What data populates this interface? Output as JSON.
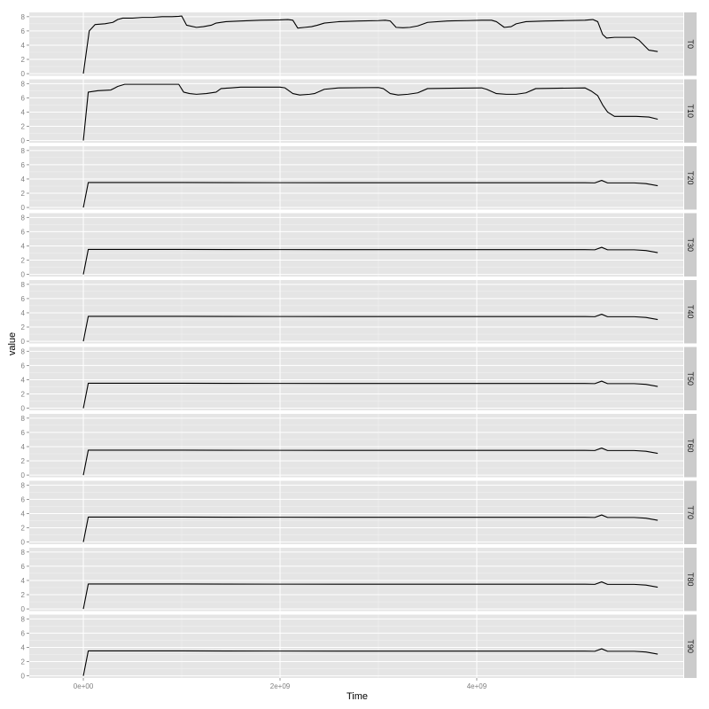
{
  "chart_data": {
    "type": "line",
    "layout": "faceted-vertical",
    "xlabel": "Time",
    "ylabel": "value",
    "xlim": [
      -550000000.0,
      6100000000.0
    ],
    "ylim": [
      -0.3,
      8.6
    ],
    "x_ticks": [
      0,
      2000000000.0,
      4000000000.0
    ],
    "x_tick_labels": [
      "0e+00",
      "2e+09",
      "4e+09"
    ],
    "y_ticks": [
      0,
      2,
      4,
      6,
      8
    ],
    "y_tick_labels": [
      "0",
      "2",
      "4",
      "6",
      "8"
    ],
    "grid": true,
    "line_color": "#000000",
    "panel_background": "#e5e5e5",
    "strip_background": "#cccccc",
    "facets": [
      {
        "label": "T0",
        "x": [
          0,
          60000000.0,
          120000000.0,
          220000000.0,
          300000000.0,
          350000000.0,
          400000000.0,
          500000000.0,
          600000000.0,
          700000000.0,
          800000000.0,
          900000000.0,
          970000000.0,
          1000000000.0,
          1050000000.0,
          1150000000.0,
          1220000000.0,
          1300000000.0,
          1350000000.0,
          1450000000.0,
          1600000000.0,
          1800000000.0,
          2000000000.0,
          2080000000.0,
          2130000000.0,
          2180000000.0,
          2250000000.0,
          2320000000.0,
          2380000000.0,
          2450000000.0,
          2600000000.0,
          2800000000.0,
          3000000000.0,
          3070000000.0,
          3120000000.0,
          3180000000.0,
          3250000000.0,
          3320000000.0,
          3400000000.0,
          3500000000.0,
          3700000000.0,
          3900000000.0,
          4050000000.0,
          4150000000.0,
          4200000000.0,
          4280000000.0,
          4350000000.0,
          4400000000.0,
          4500000000.0,
          4700000000.0,
          4900000000.0,
          5100000000.0,
          5180000000.0,
          5230000000.0,
          5280000000.0,
          5320000000.0,
          5400000000.0,
          5600000000.0,
          5650000000.0,
          5750000000.0,
          5840000000.0
        ],
        "y": [
          0,
          6.0,
          6.9,
          7.0,
          7.2,
          7.6,
          7.8,
          7.8,
          7.9,
          7.9,
          8.0,
          8.0,
          8.05,
          8.1,
          6.8,
          6.5,
          6.6,
          6.8,
          7.1,
          7.3,
          7.4,
          7.5,
          7.55,
          7.6,
          7.5,
          6.4,
          6.5,
          6.6,
          6.8,
          7.1,
          7.3,
          7.4,
          7.45,
          7.5,
          7.4,
          6.5,
          6.45,
          6.5,
          6.7,
          7.2,
          7.4,
          7.45,
          7.5,
          7.5,
          7.3,
          6.5,
          6.6,
          7.0,
          7.3,
          7.4,
          7.45,
          7.5,
          7.6,
          7.3,
          5.5,
          5.0,
          5.1,
          5.1,
          4.7,
          3.3,
          3.1
        ]
      },
      {
        "label": "T10",
        "x": [
          0,
          50000000.0,
          150000000.0,
          280000000.0,
          350000000.0,
          420000000.0,
          600000000.0,
          800000000.0,
          970000000.0,
          1020000000.0,
          1080000000.0,
          1150000000.0,
          1250000000.0,
          1350000000.0,
          1400000000.0,
          1500000000.0,
          1600000000.0,
          2000000000.0,
          2050000000.0,
          2130000000.0,
          2200000000.0,
          2300000000.0,
          2350000000.0,
          2450000000.0,
          2600000000.0,
          3000000000.0,
          3050000000.0,
          3120000000.0,
          3200000000.0,
          3300000000.0,
          3400000000.0,
          3500000000.0,
          4050000000.0,
          4100000000.0,
          4200000000.0,
          4300000000.0,
          4400000000.0,
          4500000000.0,
          4600000000.0,
          5100000000.0,
          5170000000.0,
          5230000000.0,
          5280000000.0,
          5330000000.0,
          5400000000.0,
          5620000000.0,
          5750000000.0,
          5840000000.0
        ],
        "y": [
          0,
          6.8,
          7.0,
          7.1,
          7.6,
          7.9,
          7.9,
          7.9,
          7.9,
          6.8,
          6.6,
          6.5,
          6.6,
          6.8,
          7.3,
          7.4,
          7.5,
          7.5,
          7.4,
          6.6,
          6.4,
          6.5,
          6.6,
          7.2,
          7.4,
          7.45,
          7.3,
          6.6,
          6.4,
          6.5,
          6.7,
          7.3,
          7.4,
          7.2,
          6.6,
          6.5,
          6.5,
          6.7,
          7.3,
          7.4,
          6.9,
          6.3,
          5.0,
          4.0,
          3.4,
          3.4,
          3.3,
          3.0
        ]
      },
      {
        "label": "T20",
        "x": [
          0,
          50000000.0,
          1000000000.0,
          2000000000.0,
          3000000000.0,
          4000000000.0,
          5100000000.0,
          5200000000.0,
          5270000000.0,
          5330000000.0,
          5600000000.0,
          5720000000.0,
          5840000000.0
        ],
        "y": [
          0,
          3.5,
          3.5,
          3.48,
          3.47,
          3.47,
          3.47,
          3.45,
          3.8,
          3.45,
          3.45,
          3.35,
          3.05
        ]
      },
      {
        "label": "T30",
        "x": [
          0,
          50000000.0,
          1000000000.0,
          2000000000.0,
          3000000000.0,
          4000000000.0,
          5100000000.0,
          5200000000.0,
          5270000000.0,
          5330000000.0,
          5600000000.0,
          5720000000.0,
          5840000000.0
        ],
        "y": [
          0,
          3.5,
          3.5,
          3.48,
          3.47,
          3.47,
          3.47,
          3.45,
          3.8,
          3.45,
          3.45,
          3.35,
          3.05
        ]
      },
      {
        "label": "T40",
        "x": [
          0,
          50000000.0,
          1000000000.0,
          2000000000.0,
          3000000000.0,
          4000000000.0,
          5100000000.0,
          5200000000.0,
          5270000000.0,
          5330000000.0,
          5600000000.0,
          5720000000.0,
          5840000000.0
        ],
        "y": [
          0,
          3.5,
          3.5,
          3.48,
          3.47,
          3.47,
          3.47,
          3.45,
          3.8,
          3.45,
          3.45,
          3.35,
          3.05
        ]
      },
      {
        "label": "T50",
        "x": [
          0,
          50000000.0,
          1000000000.0,
          2000000000.0,
          3000000000.0,
          4000000000.0,
          5100000000.0,
          5200000000.0,
          5270000000.0,
          5330000000.0,
          5600000000.0,
          5720000000.0,
          5840000000.0
        ],
        "y": [
          0,
          3.5,
          3.5,
          3.48,
          3.47,
          3.47,
          3.47,
          3.45,
          3.8,
          3.45,
          3.45,
          3.35,
          3.05
        ]
      },
      {
        "label": "T60",
        "x": [
          0,
          50000000.0,
          1000000000.0,
          2000000000.0,
          3000000000.0,
          4000000000.0,
          5100000000.0,
          5200000000.0,
          5270000000.0,
          5330000000.0,
          5600000000.0,
          5720000000.0,
          5840000000.0
        ],
        "y": [
          0,
          3.5,
          3.5,
          3.48,
          3.47,
          3.47,
          3.47,
          3.45,
          3.8,
          3.45,
          3.45,
          3.35,
          3.05
        ]
      },
      {
        "label": "T70",
        "x": [
          0,
          50000000.0,
          1000000000.0,
          2000000000.0,
          3000000000.0,
          4000000000.0,
          5100000000.0,
          5200000000.0,
          5270000000.0,
          5330000000.0,
          5600000000.0,
          5720000000.0,
          5840000000.0
        ],
        "y": [
          0,
          3.5,
          3.5,
          3.48,
          3.47,
          3.47,
          3.47,
          3.45,
          3.8,
          3.45,
          3.45,
          3.35,
          3.05
        ]
      },
      {
        "label": "T80",
        "x": [
          0,
          50000000.0,
          1000000000.0,
          2000000000.0,
          3000000000.0,
          4000000000.0,
          5100000000.0,
          5200000000.0,
          5270000000.0,
          5330000000.0,
          5600000000.0,
          5720000000.0,
          5840000000.0
        ],
        "y": [
          0,
          3.5,
          3.5,
          3.48,
          3.47,
          3.47,
          3.47,
          3.45,
          3.8,
          3.45,
          3.45,
          3.35,
          3.05
        ]
      },
      {
        "label": "T90",
        "x": [
          0,
          50000000.0,
          1000000000.0,
          2000000000.0,
          3000000000.0,
          4000000000.0,
          5100000000.0,
          5200000000.0,
          5270000000.0,
          5330000000.0,
          5600000000.0,
          5720000000.0,
          5840000000.0
        ],
        "y": [
          0,
          3.5,
          3.5,
          3.48,
          3.47,
          3.47,
          3.47,
          3.45,
          3.8,
          3.45,
          3.45,
          3.35,
          3.05
        ]
      }
    ]
  }
}
